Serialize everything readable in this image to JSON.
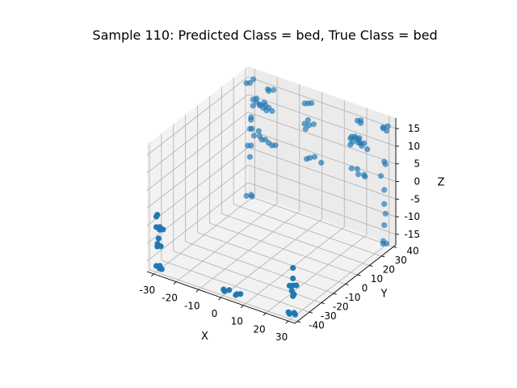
{
  "chart_data": {
    "type": "scatter",
    "title": "Sample 110: Predicted Class = bed, True Class = bed",
    "xlabel": "X",
    "ylabel": "Y",
    "zlabel": "Z",
    "xlim": [
      -33,
      33
    ],
    "ylim": [
      -42,
      42
    ],
    "zlim": [
      -18,
      18
    ],
    "xticks": [
      -30,
      -20,
      -10,
      0,
      10,
      20,
      30
    ],
    "yticks": [
      -40,
      -30,
      -20,
      -10,
      0,
      10,
      20,
      30,
      40
    ],
    "zticks": [
      -15,
      -10,
      -5,
      0,
      5,
      10,
      15
    ],
    "grid": true,
    "marker_color": "#1f77b4",
    "points": [
      [
        -29,
        -39,
        -17
      ],
      [
        -31,
        -38,
        -17
      ],
      [
        -30,
        -37,
        -17
      ],
      [
        -28,
        -39,
        -17
      ],
      [
        -30,
        -39,
        -11
      ],
      [
        -29,
        -38,
        -11
      ],
      [
        -31,
        -37,
        -11
      ],
      [
        -30,
        -38,
        -9
      ],
      [
        -30,
        -37,
        -6
      ],
      [
        -29,
        -39,
        -6
      ],
      [
        -31,
        -38,
        -6
      ],
      [
        -28,
        -38,
        -6
      ],
      [
        -30,
        -39,
        -2
      ],
      [
        -31,
        -38,
        -3
      ],
      [
        29,
        -39,
        -17
      ],
      [
        31,
        -38,
        -17
      ],
      [
        30,
        -37,
        -17
      ],
      [
        28,
        -38,
        -17
      ],
      [
        30,
        -38,
        -12
      ],
      [
        31,
        -39,
        -11
      ],
      [
        29,
        -37,
        -11
      ],
      [
        30,
        -38,
        -9
      ],
      [
        29,
        -39,
        -9
      ],
      [
        31,
        -37,
        -9
      ],
      [
        30,
        -38,
        -7
      ],
      [
        30,
        -38,
        -4
      ],
      [
        29,
        39,
        -17
      ],
      [
        31,
        38,
        -17
      ],
      [
        30,
        37,
        -17
      ],
      [
        30,
        38,
        -12
      ],
      [
        30,
        39,
        -9
      ],
      [
        30,
        38,
        -6
      ],
      [
        30,
        38,
        -2
      ],
      [
        29,
        37,
        2
      ],
      [
        30,
        39,
        5
      ],
      [
        30,
        38,
        6
      ],
      [
        29,
        39,
        15
      ],
      [
        31,
        38,
        15
      ],
      [
        30,
        37,
        16
      ],
      [
        31,
        39,
        16
      ],
      [
        -30,
        38,
        15
      ],
      [
        -29,
        39,
        16
      ],
      [
        -31,
        37,
        15
      ],
      [
        -30,
        39,
        -17
      ],
      [
        -29,
        38,
        -17
      ],
      [
        -31,
        37,
        -17
      ],
      [
        -30,
        38,
        -6
      ],
      [
        -30,
        39,
        -3
      ],
      [
        -31,
        38,
        -3
      ],
      [
        -30,
        38,
        2
      ],
      [
        -29,
        37,
        5
      ],
      [
        -30,
        39,
        5
      ],
      [
        -22,
        38,
        15
      ],
      [
        -20,
        39,
        15
      ],
      [
        -21,
        37,
        15
      ],
      [
        -4,
        38,
        15
      ],
      [
        -3,
        39,
        15
      ],
      [
        -5,
        37,
        15
      ],
      [
        18,
        38,
        15
      ],
      [
        19,
        39,
        15
      ],
      [
        20,
        37,
        15
      ],
      [
        -28,
        36,
        3
      ],
      [
        -26,
        34,
        2
      ],
      [
        -24,
        35,
        2
      ],
      [
        -22,
        33,
        2
      ],
      [
        -20,
        35,
        1
      ],
      [
        -18,
        34,
        1
      ],
      [
        -25,
        36,
        3
      ],
      [
        -17,
        35,
        1
      ],
      [
        -21,
        34,
        2
      ],
      [
        -28,
        37,
        11
      ],
      [
        -26,
        36,
        11
      ],
      [
        -24,
        35,
        11
      ],
      [
        -22,
        36,
        11
      ],
      [
        -20,
        35,
        11
      ],
      [
        -27,
        35,
        10
      ],
      [
        -25,
        37,
        10
      ],
      [
        -23,
        36,
        10
      ],
      [
        -21,
        35,
        10
      ],
      [
        -19,
        36,
        10
      ],
      [
        -26,
        36,
        12
      ],
      [
        -22,
        35,
        12
      ],
      [
        -3,
        36,
        11
      ],
      [
        -2,
        35,
        10
      ],
      [
        -1,
        37,
        10
      ],
      [
        -4,
        35,
        10
      ],
      [
        -3,
        34,
        9
      ],
      [
        0,
        32,
        2
      ],
      [
        1,
        34,
        2
      ],
      [
        4,
        34,
        1
      ],
      [
        -2,
        33,
        1
      ],
      [
        17,
        35,
        11
      ],
      [
        18,
        36,
        11
      ],
      [
        19,
        35,
        11
      ],
      [
        20,
        36,
        11
      ],
      [
        21,
        35,
        10
      ],
      [
        16,
        36,
        10
      ],
      [
        18,
        34,
        10
      ],
      [
        20,
        35,
        10
      ],
      [
        22,
        36,
        10
      ],
      [
        19,
        37,
        10
      ],
      [
        17,
        34,
        9
      ],
      [
        21,
        36,
        9
      ],
      [
        24,
        35,
        9
      ],
      [
        17,
        35,
        2
      ],
      [
        19,
        36,
        2
      ],
      [
        20,
        35,
        1
      ],
      [
        22,
        36,
        1
      ],
      [
        23,
        35,
        1
      ],
      [
        -1,
        -38,
        -17
      ],
      [
        1,
        -37,
        -17
      ],
      [
        0,
        -39,
        -17
      ],
      [
        5,
        -38,
        -17
      ],
      [
        6,
        -37,
        -17
      ],
      [
        5,
        -39,
        -17
      ]
    ]
  }
}
